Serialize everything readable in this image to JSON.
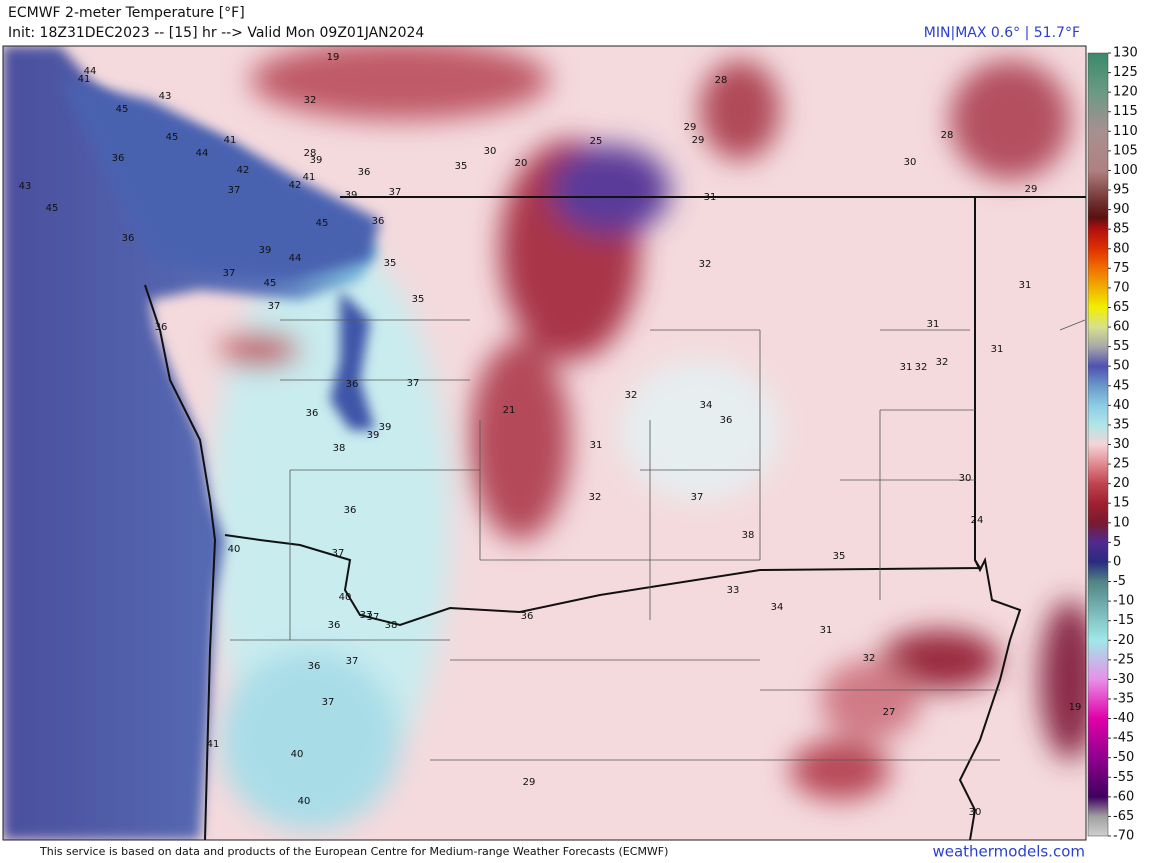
{
  "header": {
    "title": "ECMWF 2-meter Temperature [°F]",
    "subtitle": "Init: 18Z31DEC2023 -- [15] hr --> Valid Mon 09Z01JAN2024",
    "minmax": "MIN|MAX 0.6° | 51.7°F"
  },
  "colorbar": {
    "ticks": [
      130,
      125,
      120,
      115,
      110,
      105,
      100,
      95,
      90,
      85,
      80,
      75,
      70,
      65,
      60,
      55,
      50,
      45,
      40,
      35,
      30,
      25,
      20,
      15,
      10,
      5,
      0,
      -5,
      -10,
      -15,
      -20,
      -25,
      -30,
      -35,
      -40,
      -45,
      -50,
      -55,
      -60,
      -65,
      -70
    ]
  },
  "stations": [
    19,
    41,
    44,
    32,
    43,
    45,
    45,
    41,
    28,
    29,
    29,
    25,
    28,
    36,
    44,
    30,
    20,
    35,
    30,
    28,
    39,
    42,
    36,
    41,
    42,
    37,
    39,
    37,
    31,
    29,
    43,
    45,
    36,
    45,
    36,
    39,
    44,
    35,
    32,
    37,
    45,
    35,
    37,
    31,
    36,
    31,
    31,
    31,
    32,
    32,
    36,
    37,
    32,
    34,
    36,
    21,
    36,
    39,
    39,
    38,
    31,
    32,
    37,
    30,
    36,
    24,
    38,
    37,
    35,
    40,
    33,
    40,
    34,
    37,
    37,
    38,
    36,
    36,
    31,
    32,
    36,
    37,
    37,
    27,
    19,
    41,
    40,
    29,
    40,
    30
  ],
  "footer": {
    "credit": "This service is based on data and products of the European Centre for Medium-range Weather Forecasts (ECMWF)",
    "site": "weathermodels.com"
  }
}
